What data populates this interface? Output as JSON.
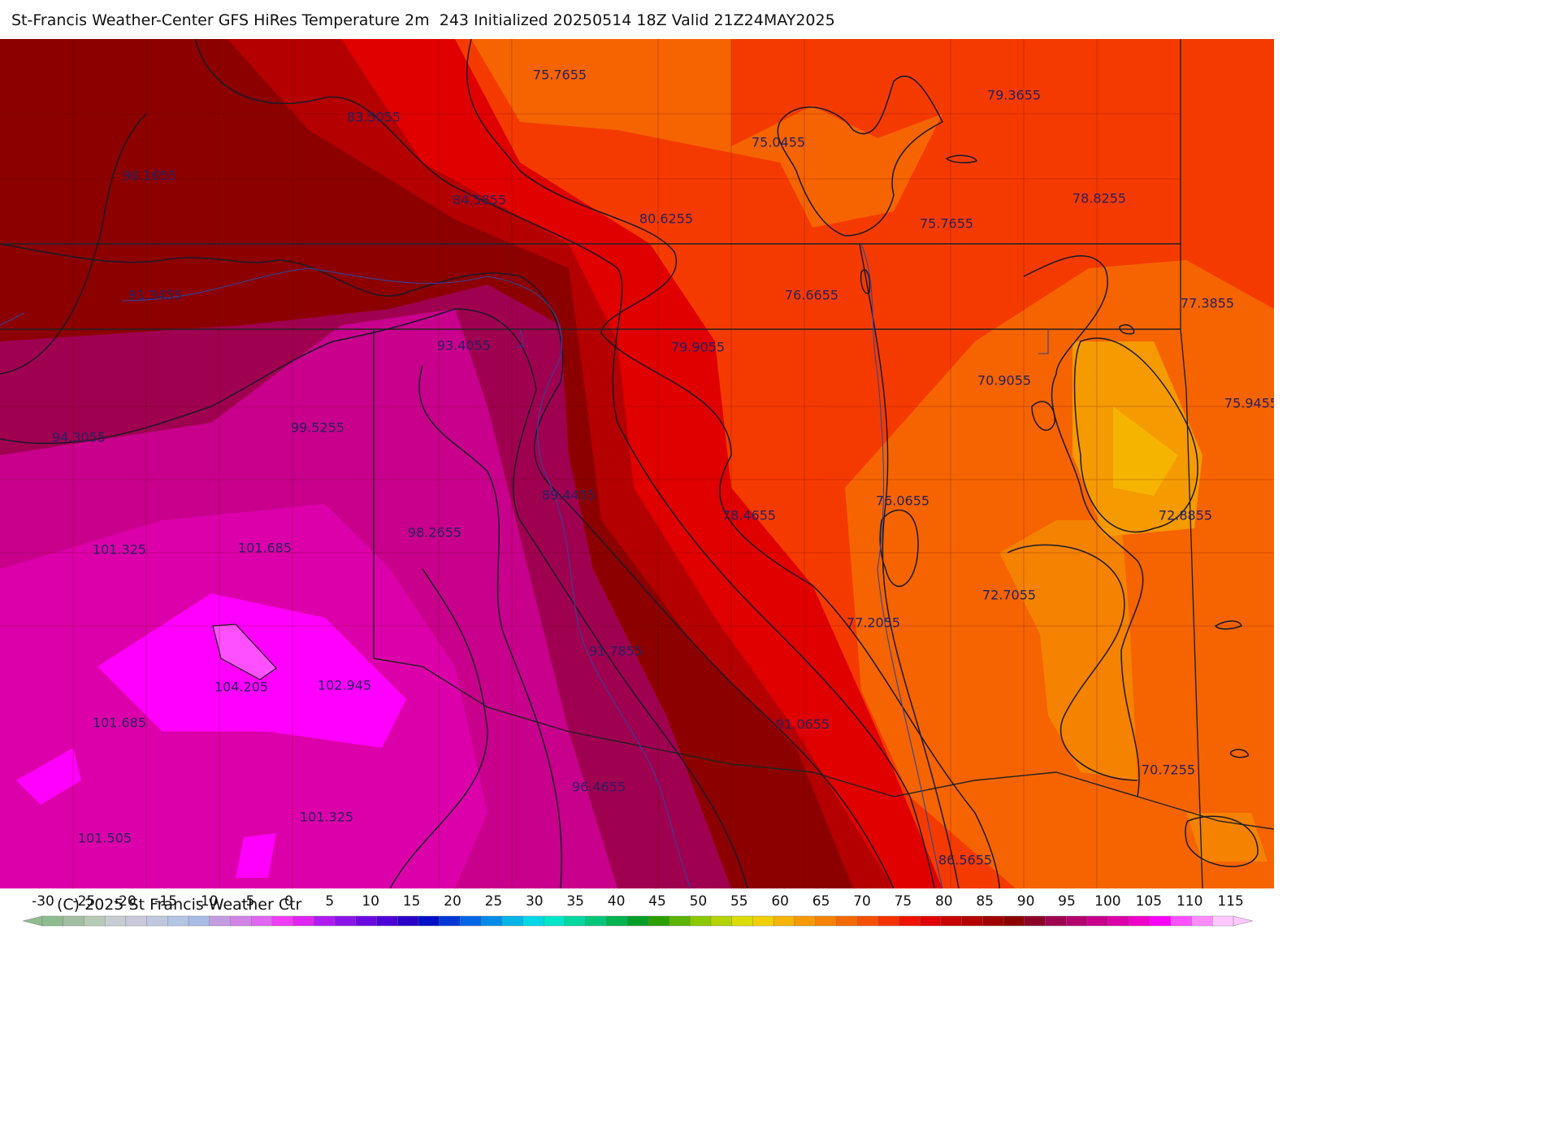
{
  "title": "St-Francis Weather-Center GFS HiRes Temperature 2m  243 Initialized 20250514 18Z Valid 21Z24MAY2025",
  "copyright": "(C) 2025 St Francis Weather Ctr",
  "legend": {
    "ticks": [
      "-30",
      "-25",
      "-20",
      "-15",
      "-10",
      "-5",
      "0",
      "5",
      "10",
      "15",
      "20",
      "25",
      "30",
      "35",
      "40",
      "45",
      "50",
      "55",
      "60",
      "65",
      "70",
      "75",
      "80",
      "85",
      "90",
      "95",
      "100",
      "105",
      "110",
      "115"
    ],
    "colors": [
      "#8fbc8f",
      "#a3bfa3",
      "#b7c9b7",
      "#c7cdd3",
      "#c9c9db",
      "#c0c8e0",
      "#b4c4e4",
      "#a8bce6",
      "#c39be0",
      "#d183e6",
      "#e065f0",
      "#f03cf5",
      "#e026f0",
      "#b01cf0",
      "#8c14e8",
      "#6a0ae0",
      "#4d00d6",
      "#2a00c8",
      "#0010c8",
      "#0038d8",
      "#0064e6",
      "#008ce8",
      "#00b4e8",
      "#00d8e8",
      "#00e6c8",
      "#00d8a0",
      "#00c878",
      "#00b450",
      "#00a028",
      "#2aa000",
      "#5ab400",
      "#8cc800",
      "#b4d400",
      "#dcdc00",
      "#f0d000",
      "#f5b400",
      "#f59a00",
      "#f58200",
      "#f56a00",
      "#f55000",
      "#f53200",
      "#f01400",
      "#e00000",
      "#c80000",
      "#b40000",
      "#a00000",
      "#8c0000",
      "#8c0028",
      "#a00050",
      "#b4006e",
      "#c8008c",
      "#dc00aa",
      "#f000c8",
      "#ff00ff",
      "#ff50ff",
      "#ff8cff",
      "#ffc8ff"
    ]
  },
  "map_labels": [
    {
      "id": "l1",
      "text": "75.7655"
    },
    {
      "id": "l2",
      "text": "79.3655"
    },
    {
      "id": "l3",
      "text": "83.5055"
    },
    {
      "id": "l4",
      "text": "75.0455"
    },
    {
      "id": "l5",
      "text": "90.1655"
    },
    {
      "id": "l6",
      "text": "84.5855"
    },
    {
      "id": "l7",
      "text": "80.6255"
    },
    {
      "id": "l8",
      "text": "75.7655"
    },
    {
      "id": "l9",
      "text": "78.8255"
    },
    {
      "id": "l10",
      "text": "91.3455"
    },
    {
      "id": "l11",
      "text": "76.6655"
    },
    {
      "id": "l12",
      "text": "77.3855"
    },
    {
      "id": "l13",
      "text": "93.4055"
    },
    {
      "id": "l14",
      "text": "79.9055"
    },
    {
      "id": "l15",
      "text": "70.9055"
    },
    {
      "id": "l16",
      "text": "75.9455"
    },
    {
      "id": "l17",
      "text": "94.3055"
    },
    {
      "id": "l18",
      "text": "99.5255"
    },
    {
      "id": "l19",
      "text": "89.4455"
    },
    {
      "id": "l20",
      "text": "76.0655"
    },
    {
      "id": "l21",
      "text": "78.4655"
    },
    {
      "id": "l22",
      "text": "72.8855"
    },
    {
      "id": "l23",
      "text": "98.2655"
    },
    {
      "id": "l24",
      "text": "101.325"
    },
    {
      "id": "l25",
      "text": "101.685"
    },
    {
      "id": "l26",
      "text": "72.7055"
    },
    {
      "id": "l27",
      "text": "77.2055"
    },
    {
      "id": "l28",
      "text": "91.7855"
    },
    {
      "id": "l29",
      "text": "104.205"
    },
    {
      "id": "l30",
      "text": "102.945"
    },
    {
      "id": "l31",
      "text": "101.685"
    },
    {
      "id": "l32",
      "text": "91.0655"
    },
    {
      "id": "l33",
      "text": "70.7255"
    },
    {
      "id": "l34",
      "text": "96.4655"
    },
    {
      "id": "l35",
      "text": "101.325"
    },
    {
      "id": "l36",
      "text": "101.505"
    },
    {
      "id": "l37",
      "text": "86.5655"
    }
  ]
}
